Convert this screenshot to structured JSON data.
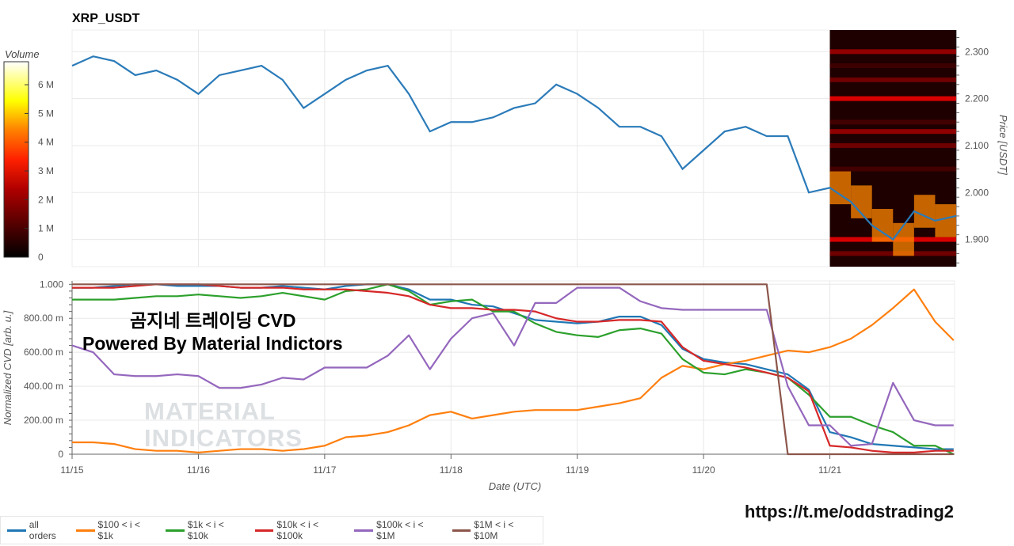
{
  "chart_data": [
    {
      "type": "line",
      "title": "XRP_USDT",
      "ylabel": "Price [USDT]",
      "ylim": [
        1.842,
        2.346
      ],
      "yticks": [
        "1.900",
        "2.000",
        "2.100",
        "2.200",
        "2.300"
      ],
      "ytick_values": [
        1.9,
        2.0,
        2.1,
        2.2,
        2.3
      ],
      "x": [
        "11/15 00:00",
        "11/15 04:00",
        "11/15 08:00",
        "11/15 12:00",
        "11/15 16:00",
        "11/15 20:00",
        "11/16 00:00",
        "11/16 04:00",
        "11/16 08:00",
        "11/16 12:00",
        "11/16 16:00",
        "11/16 20:00",
        "11/17 00:00",
        "11/17 04:00",
        "11/17 08:00",
        "11/17 12:00",
        "11/17 16:00",
        "11/17 20:00",
        "11/18 00:00",
        "11/18 04:00",
        "11/18 08:00",
        "11/18 12:00",
        "11/18 16:00",
        "11/18 20:00",
        "11/19 00:00",
        "11/19 04:00",
        "11/19 08:00",
        "11/19 12:00",
        "11/19 16:00",
        "11/19 20:00",
        "11/20 00:00",
        "11/20 04:00",
        "11/20 08:00",
        "11/20 12:00",
        "11/20 16:00",
        "11/20 20:00",
        "11/21 00:00",
        "11/21 04:00",
        "11/21 08:00",
        "11/21 12:00",
        "11/21 16:00",
        "11/21 20:00",
        "11/22 00:00"
      ],
      "series": [
        {
          "values": [
            2.27,
            2.29,
            2.28,
            2.25,
            2.26,
            2.24,
            2.21,
            2.25,
            2.26,
            2.27,
            2.24,
            2.18,
            2.21,
            2.24,
            2.26,
            2.27,
            2.21,
            2.13,
            2.15,
            2.15,
            2.16,
            2.18,
            2.19,
            2.23,
            2.21,
            2.18,
            2.14,
            2.14,
            2.12,
            2.05,
            2.09,
            2.13,
            2.14,
            2.12,
            2.12,
            2.0,
            2.01,
            1.98,
            1.93,
            1.9,
            1.96,
            1.94,
            1.95
          ],
          "color": "#2b7bb9"
        }
      ],
      "heatmap": {
        "label": "Volume",
        "x_start": "11/21 00:00",
        "colorbar_ticks": [
          "0",
          "1 M",
          "2 M",
          "3 M",
          "4 M",
          "5 M",
          "6 M"
        ],
        "colorbar_values": [
          0,
          1000000,
          2000000,
          3000000,
          4000000,
          5000000,
          6000000
        ],
        "vmax": 6800000,
        "levels": [
          {
            "price": 2.3,
            "volume": 2000000
          },
          {
            "price": 2.27,
            "volume": 800000
          },
          {
            "price": 2.24,
            "volume": 1500000
          },
          {
            "price": 2.2,
            "volume": 3000000
          },
          {
            "price": 2.15,
            "volume": 900000
          },
          {
            "price": 2.13,
            "volume": 2000000
          },
          {
            "price": 2.1,
            "volume": 1500000
          },
          {
            "price": 2.05,
            "volume": 900000
          },
          {
            "price": 1.9,
            "volume": 3000000
          },
          {
            "price": 1.87,
            "volume": 1500000
          }
        ],
        "near_price_volume": 4500000
      }
    },
    {
      "type": "line",
      "ylabel": "Normalized CVD [arb. u.]",
      "xlabel": "Date (UTC)",
      "ylim": [
        0,
        1.02
      ],
      "yticks": [
        "0",
        "200.00 m",
        "400.00 m",
        "600.00 m",
        "800.00 m",
        "1.000"
      ],
      "ytick_values": [
        0,
        0.2,
        0.4,
        0.6,
        0.8,
        1.0
      ],
      "xticks": [
        "11/15",
        "11/16",
        "11/17",
        "11/18",
        "11/19",
        "11/20",
        "11/21"
      ],
      "xlim": [
        "11/15 00:00",
        "11/22 00:00"
      ],
      "legend": "bottom",
      "series": [
        {
          "name": "all orders",
          "color": "#1f77b4",
          "values": [
            0.98,
            0.98,
            0.99,
            1.0,
            1.0,
            0.99,
            0.99,
            0.99,
            0.98,
            0.98,
            0.99,
            0.98,
            0.97,
            0.99,
            1.0,
            1.0,
            0.97,
            0.91,
            0.91,
            0.88,
            0.87,
            0.83,
            0.79,
            0.78,
            0.77,
            0.78,
            0.81,
            0.81,
            0.76,
            0.62,
            0.56,
            0.54,
            0.53,
            0.5,
            0.47,
            0.38,
            0.13,
            0.1,
            0.06,
            0.05,
            0.04,
            0.03,
            0.03
          ]
        },
        {
          "name": "$100 < i < $1k",
          "color": "#ff7f0e",
          "values": [
            0.07,
            0.07,
            0.06,
            0.03,
            0.02,
            0.02,
            0.01,
            0.02,
            0.03,
            0.03,
            0.02,
            0.03,
            0.05,
            0.1,
            0.11,
            0.13,
            0.17,
            0.23,
            0.25,
            0.21,
            0.23,
            0.25,
            0.26,
            0.26,
            0.26,
            0.28,
            0.3,
            0.33,
            0.45,
            0.52,
            0.5,
            0.53,
            0.55,
            0.58,
            0.61,
            0.6,
            0.63,
            0.68,
            0.76,
            0.86,
            0.97,
            0.78,
            0.67
          ]
        },
        {
          "name": "$1k < i < $10k",
          "color": "#2ca02c",
          "values": [
            0.91,
            0.91,
            0.91,
            0.92,
            0.93,
            0.93,
            0.94,
            0.93,
            0.92,
            0.93,
            0.95,
            0.93,
            0.91,
            0.96,
            0.97,
            1.0,
            0.96,
            0.88,
            0.9,
            0.91,
            0.84,
            0.84,
            0.77,
            0.72,
            0.7,
            0.69,
            0.73,
            0.74,
            0.71,
            0.56,
            0.48,
            0.47,
            0.5,
            0.48,
            0.45,
            0.35,
            0.22,
            0.22,
            0.17,
            0.13,
            0.05,
            0.05,
            0.0
          ]
        },
        {
          "name": "$10k < i < $100k",
          "color": "#d62728",
          "values": [
            0.98,
            0.98,
            0.98,
            0.99,
            1.0,
            1.0,
            1.0,
            0.99,
            0.98,
            0.98,
            0.98,
            0.97,
            0.97,
            0.97,
            0.96,
            0.95,
            0.93,
            0.88,
            0.86,
            0.86,
            0.85,
            0.85,
            0.84,
            0.8,
            0.78,
            0.78,
            0.79,
            0.79,
            0.78,
            0.63,
            0.55,
            0.53,
            0.51,
            0.48,
            0.45,
            0.37,
            0.05,
            0.04,
            0.02,
            0.01,
            0.01,
            0.02,
            0.02
          ]
        },
        {
          "name": "$100k < i < $1M",
          "color": "#9467bd",
          "values": [
            0.64,
            0.6,
            0.47,
            0.46,
            0.46,
            0.47,
            0.46,
            0.39,
            0.39,
            0.41,
            0.45,
            0.44,
            0.51,
            0.51,
            0.51,
            0.58,
            0.7,
            0.5,
            0.68,
            0.8,
            0.83,
            0.64,
            0.89,
            0.89,
            0.98,
            0.98,
            0.98,
            0.9,
            0.86,
            0.85,
            0.85,
            0.85,
            0.85,
            0.85,
            0.4,
            0.17,
            0.17,
            0.05,
            0.06,
            0.42,
            0.2,
            0.17,
            0.17
          ]
        },
        {
          "name": "$1M < i < $10M",
          "color": "#8c564b",
          "values": [
            1,
            1,
            1,
            1,
            1,
            1,
            1,
            1,
            1,
            1,
            1,
            1,
            1,
            1,
            1,
            1,
            1,
            1,
            1,
            1,
            1,
            1,
            1,
            1,
            1,
            1,
            1,
            1,
            1,
            1,
            1,
            1,
            1,
            1,
            0,
            0,
            0,
            0,
            0,
            0,
            0,
            0,
            0
          ]
        }
      ]
    }
  ],
  "overlay": {
    "line1": "곰지네 트레이딩 CVD",
    "line2": "Powered By Material Indictors",
    "watermark_line1": "MATERIAL",
    "watermark_line2": "INDICATORS"
  },
  "footer": {
    "url": "https://t.me/oddstrading2"
  }
}
